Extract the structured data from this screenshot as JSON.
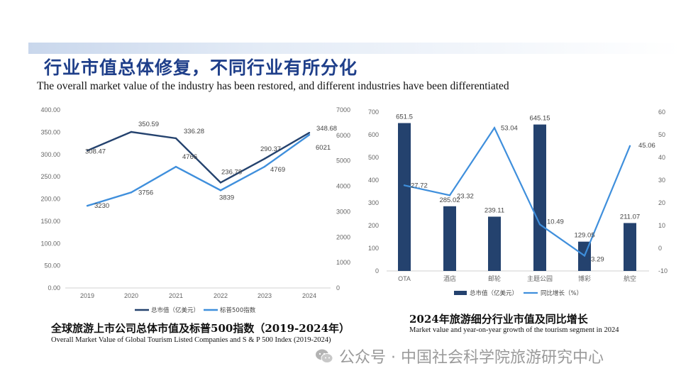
{
  "header": {
    "title_cn": "行业市值总体修复，不同行业有所分化",
    "title_en": "The overall market value of the industry has been restored, and different industries have been differentiated"
  },
  "left_caption": {
    "cn": "全球旅游上市公司总体市值及标普500指数（2019-2024年）",
    "en": "Overall Market Value of Global Tourism Listed Companies and S & P 500 Index (2019-2024)"
  },
  "right_caption": {
    "cn": "2024年旅游细分行业市值及同比增长",
    "en": "Market value and year-on-year growth of the tourism segment in 2024"
  },
  "watermark": {
    "text": "公众号 · 中国社会科学院旅游研究中心",
    "icon": "wechat-icon"
  },
  "colors": {
    "dark_blue": "#24426e",
    "mid_blue": "#1e4d8c",
    "light_blue": "#3f8fdc",
    "title_blue": "#1f3f8a"
  },
  "chart_data": [
    {
      "type": "line",
      "categories": [
        "2019",
        "2020",
        "2021",
        "2022",
        "2023",
        "2024"
      ],
      "series": [
        {
          "name": "总市值（亿美元）",
          "axis": "left",
          "values": [
            308.47,
            350.59,
            336.28,
            236.78,
            290.37,
            348.68
          ],
          "labels": [
            "308.47",
            "350.59",
            "336.28",
            "236.78",
            "290.37",
            "348.68"
          ]
        },
        {
          "name": "标普500指数",
          "axis": "right",
          "values": [
            3230,
            3756,
            4766,
            3839,
            4769,
            6021
          ],
          "labels": [
            "3230",
            "3756",
            "4766",
            "3839",
            "4769",
            "6021"
          ]
        }
      ],
      "y_left": {
        "range": [
          0,
          400
        ],
        "ticks": [
          "0.00",
          "50.00",
          "100.00",
          "150.00",
          "200.00",
          "250.00",
          "300.00",
          "350.00",
          "400.00"
        ]
      },
      "y_right": {
        "range": [
          0,
          7000
        ],
        "ticks": [
          "0",
          "1000",
          "2000",
          "3000",
          "4000",
          "5000",
          "6000",
          "7000"
        ]
      },
      "legend": [
        "总市值（亿美元）",
        "标普500指数"
      ],
      "legend_position": "bottom",
      "grid": false
    },
    {
      "type": "bar",
      "categories": [
        "OTA",
        "酒店",
        "邮轮",
        "主题公园",
        "博彩",
        "航空"
      ],
      "series": [
        {
          "name": "总市值（亿美元）",
          "type": "bar",
          "axis": "left",
          "values": [
            651.5,
            285.02,
            239.11,
            645.15,
            129.05,
            211.07
          ],
          "labels": [
            "651.5",
            "285.02",
            "239.11",
            "645.15",
            "129.05",
            "211.07"
          ]
        },
        {
          "name": "同比增长（%）",
          "type": "line",
          "axis": "right",
          "values": [
            27.72,
            23.32,
            53.04,
            10.49,
            -3.29,
            45.06
          ],
          "labels": [
            "27.72",
            "23.32",
            "53.04",
            "10.49",
            "-3.29",
            "45.06"
          ]
        }
      ],
      "y_left": {
        "range": [
          0,
          700
        ],
        "ticks": [
          "0",
          "100",
          "200",
          "300",
          "400",
          "500",
          "600",
          "700"
        ]
      },
      "y_right": {
        "range": [
          -10,
          60
        ],
        "ticks": [
          "-10",
          "0",
          "10",
          "20",
          "30",
          "40",
          "50",
          "60"
        ]
      },
      "legend": [
        "总市值（亿美元）",
        "同比增长（%）"
      ],
      "legend_position": "bottom",
      "grid": false
    }
  ]
}
